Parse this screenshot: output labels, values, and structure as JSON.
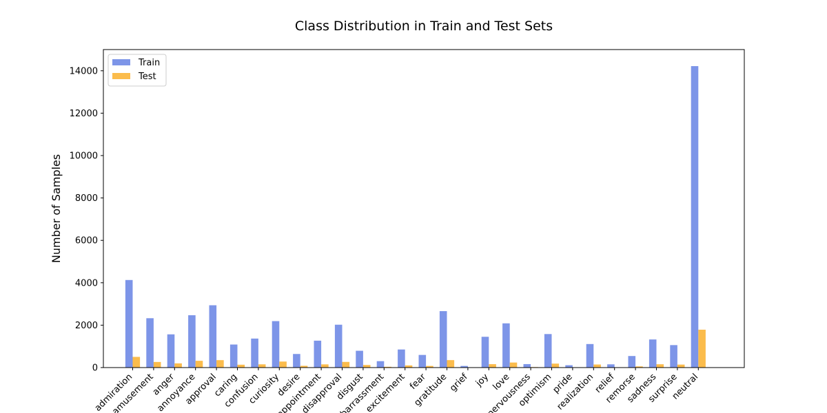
{
  "chart_data": {
    "type": "bar",
    "title": "Class Distribution in Train and Test Sets",
    "xlabel": "",
    "ylabel": "Number of Samples",
    "ylim": [
      0,
      15000
    ],
    "yticks": [
      0,
      2000,
      4000,
      6000,
      8000,
      10000,
      12000,
      14000
    ],
    "legend_position": "top-left",
    "categories": [
      "admiration",
      "amusement",
      "anger",
      "annoyance",
      "approval",
      "caring",
      "confusion",
      "curiosity",
      "desire",
      "disappointment",
      "disapproval",
      "disgust",
      "embarrassment",
      "excitement",
      "fear",
      "gratitude",
      "grief",
      "joy",
      "love",
      "nervousness",
      "optimism",
      "pride",
      "realization",
      "relief",
      "remorse",
      "sadness",
      "surprise",
      "neutral"
    ],
    "series": [
      {
        "name": "Train",
        "color": "#6f8ae5",
        "values": [
          4130,
          2328,
          1567,
          2470,
          2939,
          1087,
          1368,
          2191,
          641,
          1269,
          2022,
          793,
          303,
          853,
          596,
          2662,
          77,
          1452,
          2086,
          164,
          1581,
          111,
          1110,
          153,
          545,
          1326,
          1060,
          14219
        ]
      },
      {
        "name": "Test",
        "color": "#fbb538",
        "values": [
          504,
          264,
          198,
          320,
          351,
          135,
          153,
          284,
          83,
          151,
          267,
          123,
          37,
          103,
          78,
          352,
          6,
          161,
          238,
          23,
          186,
          16,
          145,
          11,
          56,
          156,
          141,
          1787
        ]
      }
    ]
  }
}
